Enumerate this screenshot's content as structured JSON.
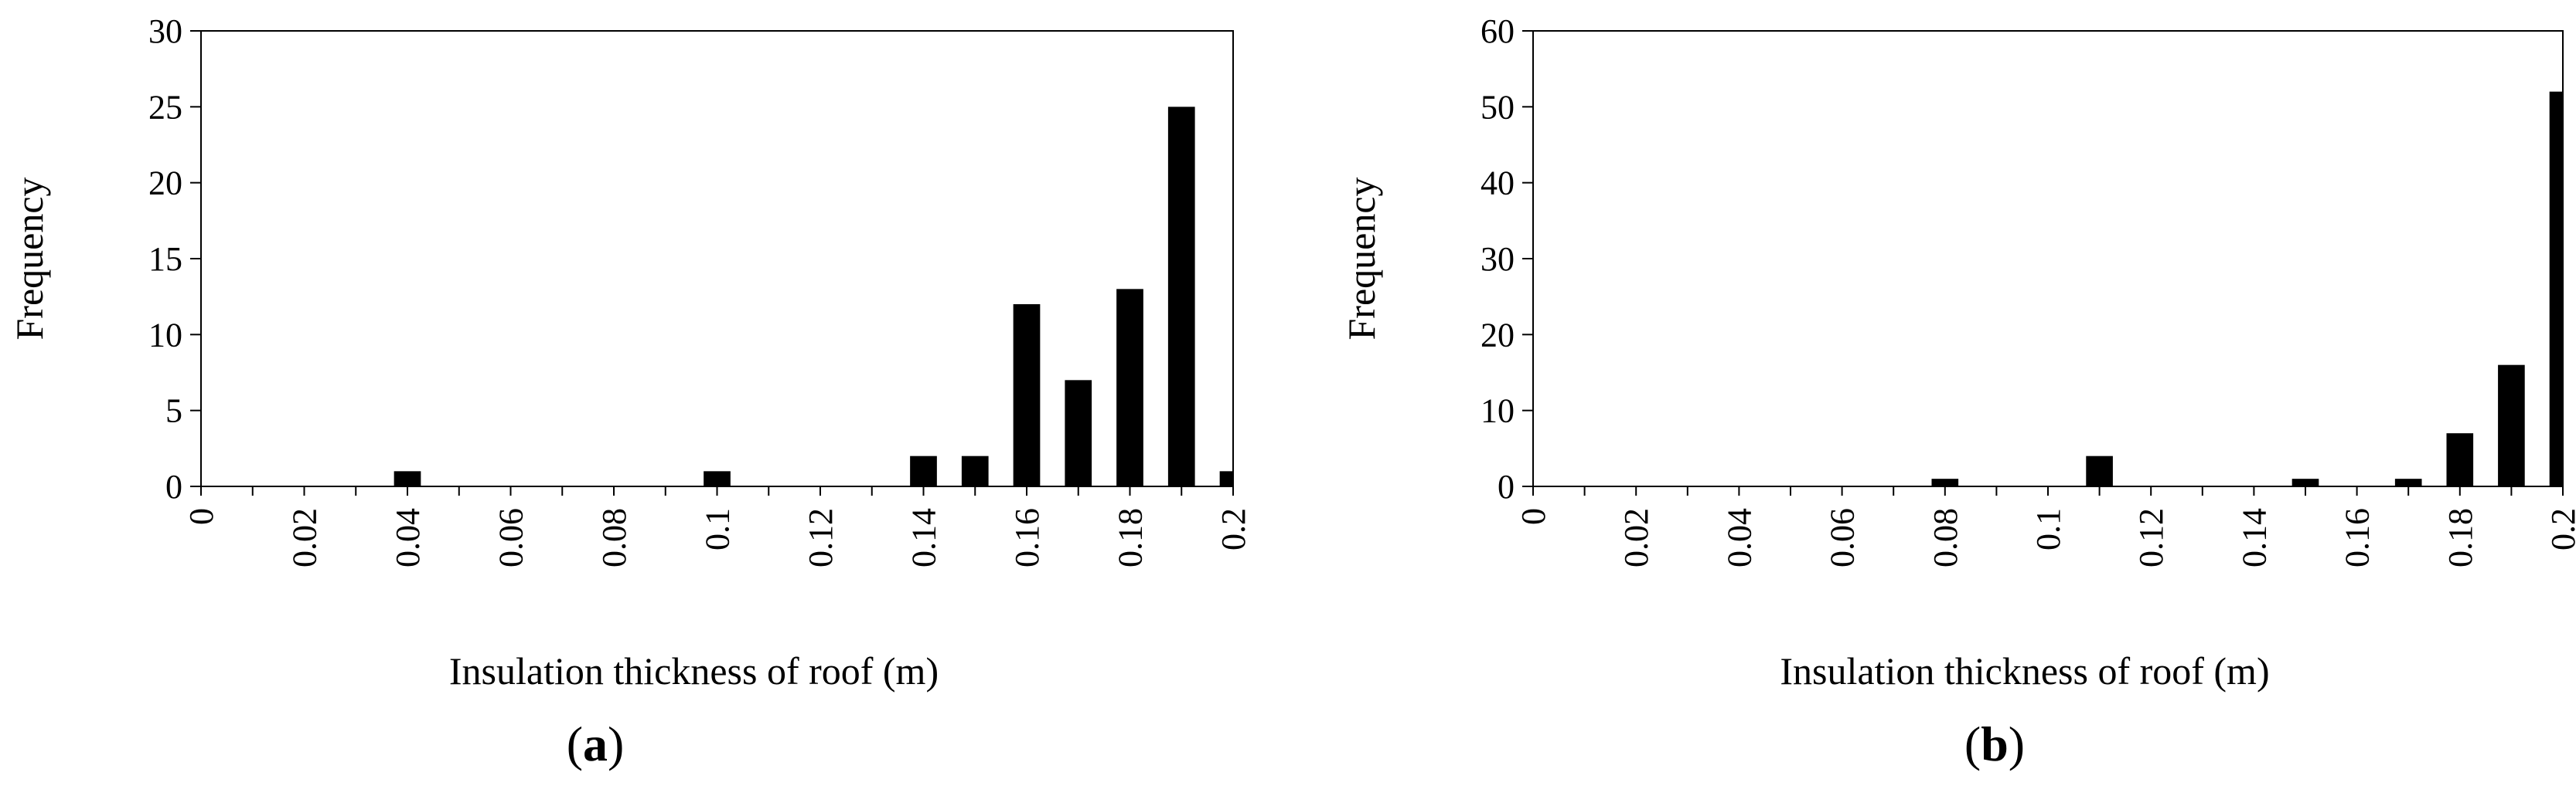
{
  "chart_data": [
    {
      "type": "bar",
      "panel_label": "a",
      "xlabel": "Insulation thickness of roof (m)",
      "ylabel": "Frequency",
      "ylim": [
        0,
        30
      ],
      "yticks": [
        "0",
        "5",
        "10",
        "15",
        "20",
        "25",
        "30"
      ],
      "xticks": [
        "0",
        "0.02",
        "0.04",
        "0.06",
        "0.08",
        "0.1",
        "0.12",
        "0.14",
        "0.16",
        "0.18",
        "0.2"
      ],
      "categories": [
        "0",
        "0.01",
        "0.02",
        "0.03",
        "0.04",
        "0.05",
        "0.06",
        "0.07",
        "0.08",
        "0.09",
        "0.1",
        "0.11",
        "0.12",
        "0.13",
        "0.14",
        "0.15",
        "0.16",
        "0.17",
        "0.18",
        "0.19",
        "0.2"
      ],
      "values": [
        0,
        0,
        0,
        0,
        1,
        0,
        0,
        0,
        0,
        0,
        1,
        0,
        0,
        0,
        2,
        2,
        12,
        7,
        13,
        25,
        1
      ],
      "grid": false,
      "bar_color": "#000000"
    },
    {
      "type": "bar",
      "panel_label": "b",
      "xlabel": "Insulation thickness of roof (m)",
      "ylabel": "Frequency",
      "ylim": [
        0,
        60
      ],
      "yticks": [
        "0",
        "10",
        "20",
        "30",
        "40",
        "50",
        "60"
      ],
      "xticks": [
        "0",
        "0.02",
        "0.04",
        "0.06",
        "0.08",
        "0.1",
        "0.12",
        "0.14",
        "0.16",
        "0.18",
        "0.2"
      ],
      "categories": [
        "0",
        "0.01",
        "0.02",
        "0.03",
        "0.04",
        "0.05",
        "0.06",
        "0.07",
        "0.08",
        "0.09",
        "0.1",
        "0.11",
        "0.12",
        "0.13",
        "0.14",
        "0.15",
        "0.16",
        "0.17",
        "0.18",
        "0.19",
        "0.2"
      ],
      "values": [
        0,
        0,
        0,
        0,
        0,
        0,
        0,
        0,
        1,
        0,
        0,
        4,
        0,
        0,
        0,
        1,
        0,
        1,
        7,
        16,
        52
      ],
      "grid": false,
      "bar_color": "#000000"
    }
  ]
}
